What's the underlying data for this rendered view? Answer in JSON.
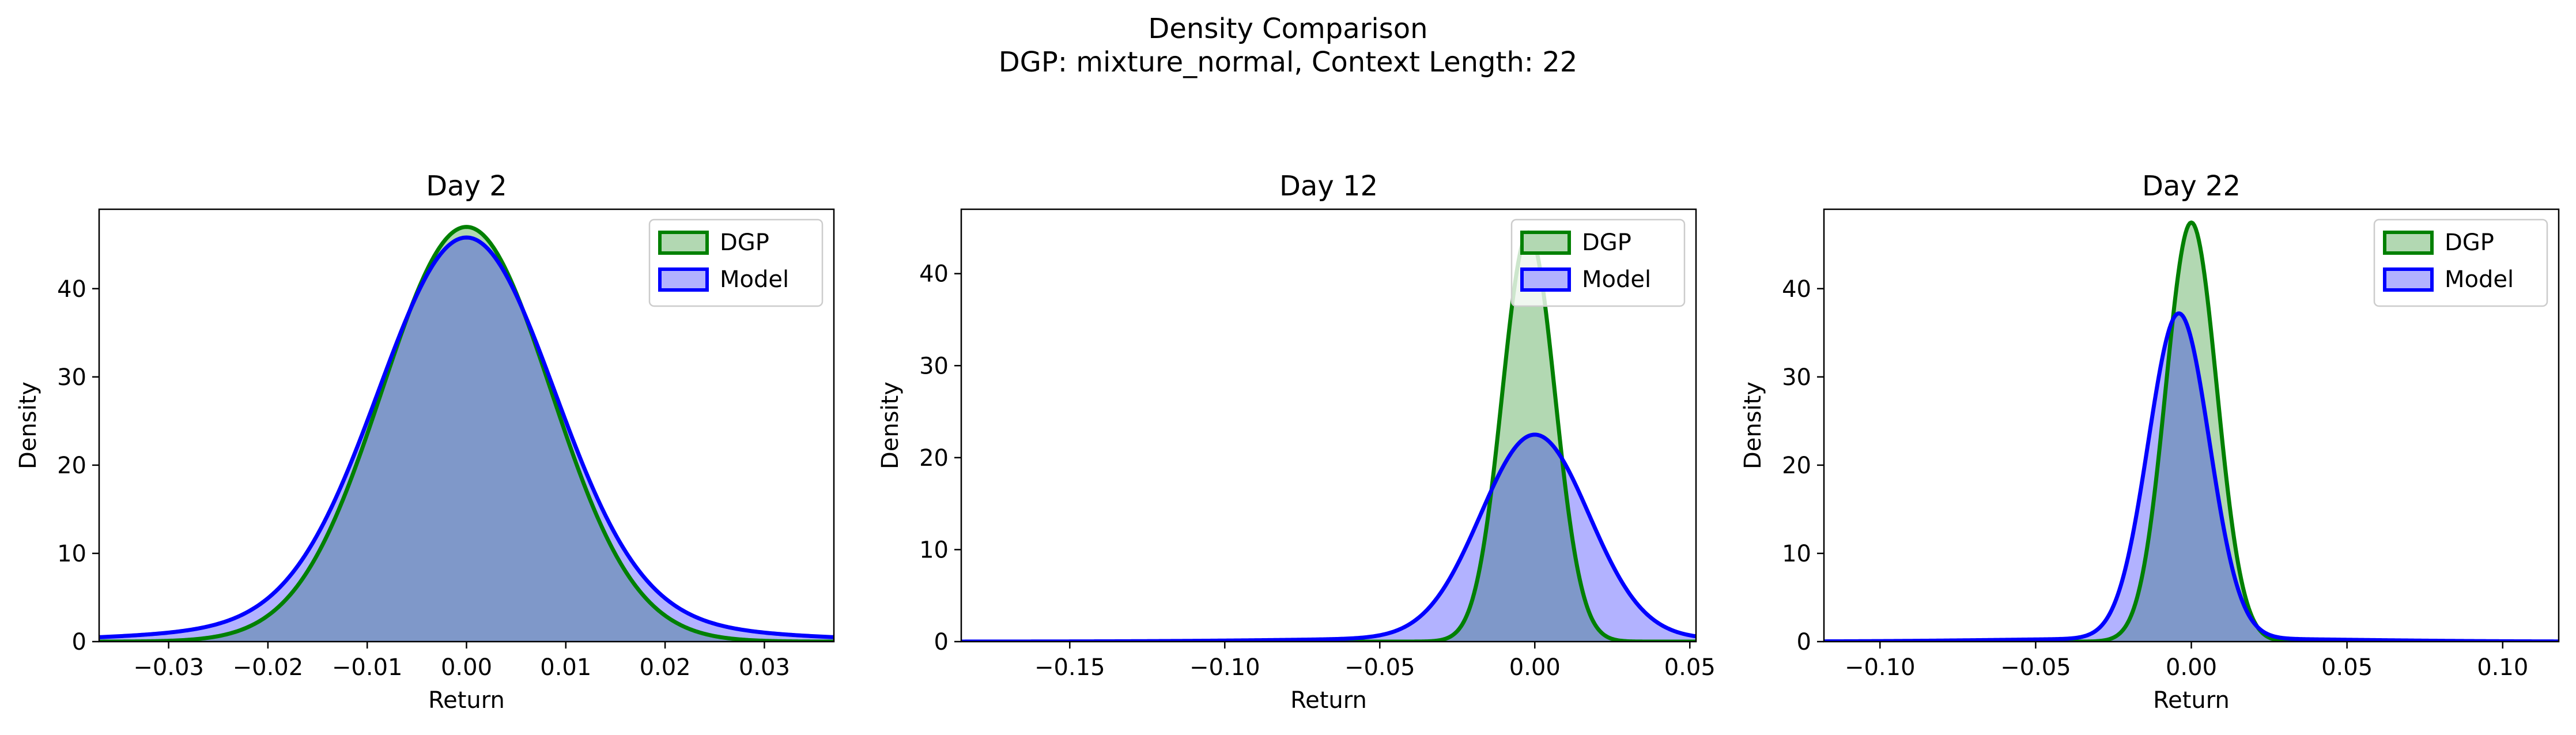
{
  "figure": {
    "title_line1": "Density Comparison",
    "title_line2": "DGP: mixture_normal, Context Length: 22"
  },
  "colors": {
    "dgp_line": "#008000",
    "dgp_fill": "#b2d8b2",
    "model_line": "#0000ff",
    "model_fill": "#b2b2ff",
    "overlap_fill": "#7f98c9"
  },
  "chart_data": [
    {
      "type": "area",
      "title": "Day 2",
      "xlabel": "Return",
      "ylabel": "Density",
      "xlim": [
        -0.037,
        0.037
      ],
      "ylim": [
        0,
        49
      ],
      "xticks": [
        -0.03,
        -0.02,
        -0.01,
        0.0,
        0.01,
        0.02,
        0.03
      ],
      "xtick_labels": [
        "−0.03",
        "−0.02",
        "−0.01",
        "0.00",
        "0.01",
        "0.02",
        "0.03"
      ],
      "yticks": [
        0,
        10,
        20,
        30,
        40
      ],
      "ytick_labels": [
        "0",
        "10",
        "20",
        "30",
        "40"
      ],
      "legend": {
        "placement": "top-right",
        "entries": [
          "DGP",
          "Model"
        ]
      },
      "series": [
        {
          "name": "DGP",
          "peak": 47,
          "center": 0.0,
          "sigma": 0.0085
        },
        {
          "name": "Model",
          "peak": 45.8,
          "center": 0.0,
          "sigma": 0.0088,
          "tail_weight": 0.06,
          "tail_sigma": 0.02
        }
      ]
    },
    {
      "type": "area",
      "title": "Day 12",
      "xlabel": "Return",
      "ylabel": "Density",
      "xlim": [
        -0.185,
        0.052
      ],
      "ylim": [
        0,
        47
      ],
      "xticks": [
        -0.15,
        -0.1,
        -0.05,
        0.0,
        0.05
      ],
      "xtick_labels": [
        "−0.15",
        "−0.10",
        "−0.05",
        "0.00",
        "0.05"
      ],
      "yticks": [
        0,
        10,
        20,
        30,
        40
      ],
      "ytick_labels": [
        "0",
        "10",
        "20",
        "30",
        "40"
      ],
      "legend": {
        "placement": "top-right",
        "entries": [
          "DGP",
          "Model"
        ]
      },
      "series": [
        {
          "name": "DGP",
          "peak": 44.5,
          "center": -0.002,
          "sigma": 0.0085
        },
        {
          "name": "Model",
          "peak": 22.5,
          "center": 0.0,
          "sigma": 0.0175,
          "tail_weight": 0.02,
          "tail_sigma": 0.06
        }
      ]
    },
    {
      "type": "area",
      "title": "Day 22",
      "xlabel": "Return",
      "ylabel": "Density",
      "xlim": [
        -0.118,
        0.118
      ],
      "ylim": [
        0,
        49
      ],
      "xticks": [
        -0.1,
        -0.05,
        0.0,
        0.05,
        0.1
      ],
      "xtick_labels": [
        "−0.10",
        "−0.05",
        "0.00",
        "0.05",
        "0.10"
      ],
      "yticks": [
        0,
        10,
        20,
        30,
        40
      ],
      "ytick_labels": [
        "0",
        "10",
        "20",
        "30",
        "40"
      ],
      "legend": {
        "placement": "top-right",
        "entries": [
          "DGP",
          "Model"
        ]
      },
      "series": [
        {
          "name": "DGP",
          "peak": 47.5,
          "center": 0.0,
          "sigma": 0.0082
        },
        {
          "name": "Model",
          "peak": 37.2,
          "center": -0.004,
          "sigma": 0.0098,
          "tail_weight": 0.01,
          "tail_sigma": 0.05
        }
      ]
    }
  ]
}
